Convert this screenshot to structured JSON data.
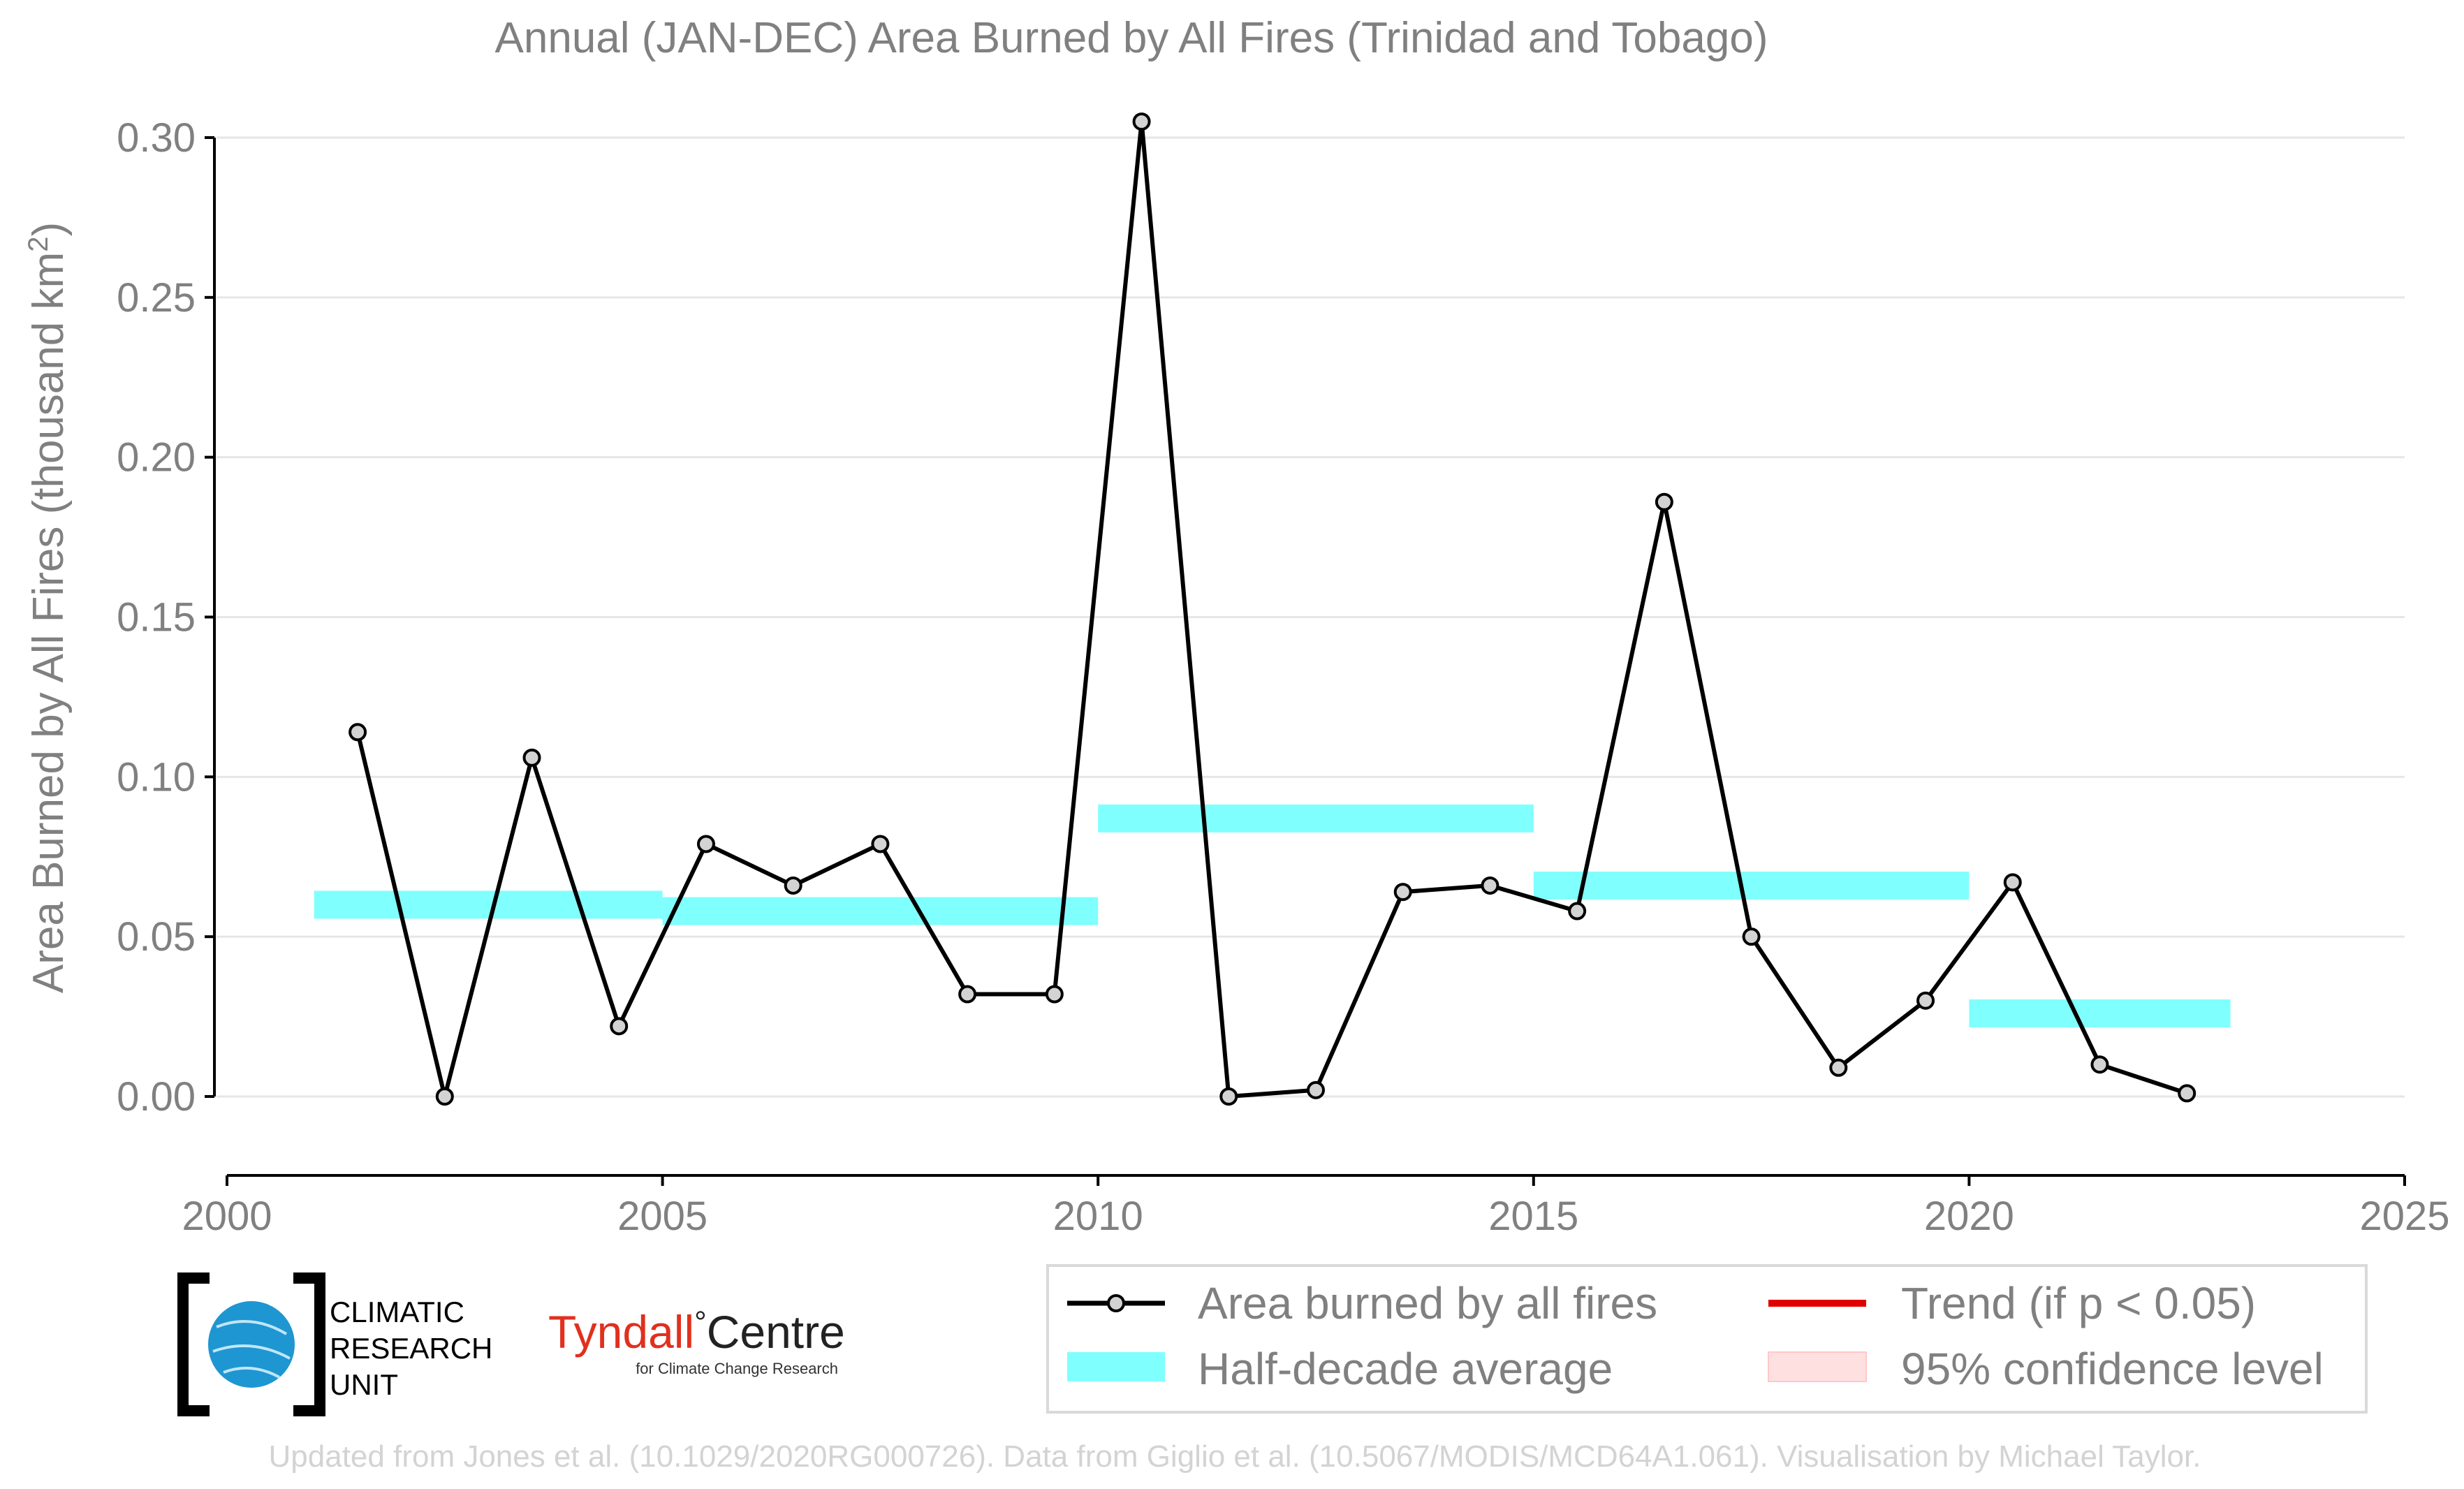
{
  "chart_data": {
    "type": "line",
    "title": "Annual (JAN-DEC) Area Burned by All Fires (Trinidad and Tobago)",
    "ylabel_main": "Area Burned by All Fires (thousand km",
    "ylabel_sup": "2",
    "ylabel_end": ")",
    "xlabel": "",
    "xlim": [
      2000,
      2025
    ],
    "ylim": [
      0,
      0.3
    ],
    "x_ticks": [
      "2000",
      "2005",
      "2010",
      "2015",
      "2020",
      "2025"
    ],
    "y_ticks": [
      "0.00",
      "0.05",
      "0.10",
      "0.15",
      "0.20",
      "0.25",
      "0.30"
    ],
    "grid": true,
    "legend_placement": "bottom-right",
    "series": [
      {
        "name": "Area burned by all fires",
        "color": "#000000",
        "marker_fill": "#d3d3d3",
        "x": [
          2001.5,
          2002.5,
          2003.5,
          2004.5,
          2005.5,
          2006.5,
          2007.5,
          2008.5,
          2009.5,
          2010.5,
          2011.5,
          2012.5,
          2013.5,
          2014.5,
          2015.5,
          2016.5,
          2017.5,
          2018.5,
          2019.5,
          2020.5,
          2021.5,
          2022.5
        ],
        "values": [
          0.114,
          0.0,
          0.106,
          0.022,
          0.079,
          0.066,
          0.079,
          0.032,
          0.032,
          0.305,
          0.0,
          0.002,
          0.064,
          0.066,
          0.058,
          0.186,
          0.05,
          0.009,
          0.03,
          0.067,
          0.01,
          0.001
        ]
      }
    ],
    "half_decade": {
      "name": "Half-decade average",
      "color": "#80ffff",
      "segments": [
        {
          "x0": 2001,
          "x1": 2005,
          "value": 0.06
        },
        {
          "x0": 2005,
          "x1": 2010,
          "value": 0.058
        },
        {
          "x0": 2010,
          "x1": 2015,
          "value": 0.087
        },
        {
          "x0": 2015,
          "x1": 2020,
          "value": 0.066
        },
        {
          "x0": 2020,
          "x1": 2023,
          "value": 0.026
        }
      ]
    },
    "legend": {
      "line_label": "Area burned by all fires",
      "band_label": "Half-decade average",
      "trend_label": "Trend (if p < 0.05)",
      "ci_label": "95% confidence level",
      "trend_color": "#e00000",
      "ci_color": "#ffe0e0"
    }
  },
  "logos": {
    "cru_line1": "CLIMATIC",
    "cru_line2": "RESEARCH",
    "cru_line3": "UNIT",
    "tyndall_main": "Tyndall",
    "tyndall_degree": "°",
    "tyndall_centre": "Centre",
    "tyndall_sub": "for Climate Change Research",
    "tyndall_color": "#e0301e"
  },
  "footer": {
    "credit": "Updated from Jones et al. (10.1029/2020RG000726). Data from Giglio et al. (10.5067/MODIS/MCD64A1.061). Visualisation by Michael Taylor."
  }
}
